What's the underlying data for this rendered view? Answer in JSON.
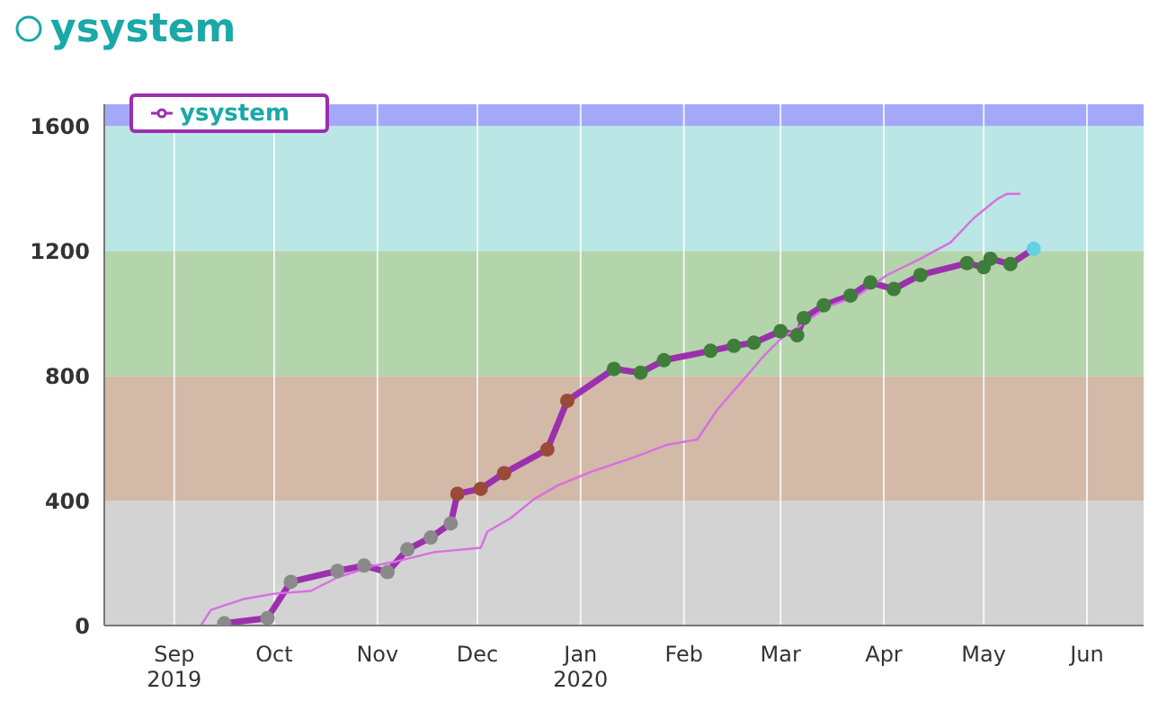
{
  "chart_data": {
    "type": "line",
    "title": "ysystem",
    "x": [
      "2019-09-16",
      "2019-09-29",
      "2019-10-06",
      "2019-10-20",
      "2019-10-28",
      "2019-11-04",
      "2019-11-10",
      "2019-11-17",
      "2019-11-23",
      "2019-11-25",
      "2019-12-02",
      "2019-12-09",
      "2019-12-22",
      "2019-12-28",
      "2020-01-11",
      "2020-01-19",
      "2020-01-26",
      "2020-02-09",
      "2020-02-16",
      "2020-02-22",
      "2020-03-01",
      "2020-03-06",
      "2020-03-08",
      "2020-03-14",
      "2020-03-22",
      "2020-03-28",
      "2020-04-04",
      "2020-04-12",
      "2020-04-26",
      "2020-05-01",
      "2020-05-03",
      "2020-05-09",
      "2020-05-16"
    ],
    "series": [
      {
        "name": "ysystem",
        "color": "#9b2fae",
        "marker": "circle",
        "values": [
          7,
          24,
          140,
          175,
          192,
          171,
          244,
          282,
          327,
          422,
          438,
          488,
          564,
          720,
          822,
          810,
          850,
          880,
          896,
          906,
          943,
          930,
          985,
          1026,
          1057,
          1099,
          1078,
          1123,
          1161,
          1148,
          1175,
          1158,
          1207
        ],
        "colors": [
          "#8a8a8a",
          "#8a8a8a",
          "#8a8a8a",
          "#8a8a8a",
          "#8a8a8a",
          "#8a8a8a",
          "#8a8a8a",
          "#8a8a8a",
          "#8a8a8a",
          "#9a4a38",
          "#9a4a38",
          "#9a4a38",
          "#9a4a38",
          "#9a4a38",
          "#3f7d3a",
          "#3f7d3a",
          "#3f7d3a",
          "#3f7d3a",
          "#3f7d3a",
          "#3f7d3a",
          "#3f7d3a",
          "#3f7d3a",
          "#3f7d3a",
          "#3f7d3a",
          "#3f7d3a",
          "#3f7d3a",
          "#3f7d3a",
          "#3f7d3a",
          "#3f7d3a",
          "#3f7d3a",
          "#3f7d3a",
          "#3f7d3a",
          "#5fd3e0"
        ]
      },
      {
        "color": "#d86ee4",
        "marker": "none",
        "x": [
          "2019-09-09",
          "2019-09-12",
          "2019-09-22",
          "2019-10-01",
          "2019-10-12",
          "2019-10-20",
          "2019-10-31",
          "2019-11-07",
          "2019-11-18",
          "2019-12-02",
          "2019-12-04",
          "2019-12-11",
          "2019-12-18",
          "2019-12-25",
          "2020-01-04",
          "2020-01-16",
          "2020-01-27",
          "2020-02-05",
          "2020-02-11",
          "2020-02-18",
          "2020-02-25",
          "2020-03-01",
          "2020-03-08",
          "2020-03-15",
          "2020-03-24",
          "2020-04-02",
          "2020-04-12",
          "2020-04-21",
          "2020-04-28",
          "2020-05-05",
          "2020-05-08",
          "2020-05-12"
        ],
        "values": [
          0,
          50,
          85,
          102,
          111,
          154,
          192,
          206,
          235,
          249,
          301,
          344,
          405,
          448,
          492,
          535,
          579,
          596,
          691,
          777,
          864,
          917,
          969,
          1021,
          1055,
          1123,
          1175,
          1227,
          1305,
          1366,
          1383,
          1383
        ]
      }
    ],
    "xlim": [
      "2019-08-11",
      "2020-06-18"
    ],
    "xticks": [
      {
        "value": "2019-09-01",
        "label": "Sep 2019"
      },
      {
        "value": "2019-10-01",
        "label": "Oct"
      },
      {
        "value": "2019-11-01",
        "label": "Nov"
      },
      {
        "value": "2019-12-01",
        "label": "Dec"
      },
      {
        "value": "2020-01-01",
        "label": "Jan 2020"
      },
      {
        "value": "2020-02-01",
        "label": "Feb"
      },
      {
        "value": "2020-03-01",
        "label": "Mar"
      },
      {
        "value": "2020-04-01",
        "label": "Apr"
      },
      {
        "value": "2020-05-01",
        "label": "May"
      },
      {
        "value": "2020-06-01",
        "label": "Jun"
      }
    ],
    "ylim": [
      0,
      1670
    ],
    "yticks": [
      0,
      400,
      800,
      1200,
      1600
    ],
    "bands": [
      {
        "axis": "y",
        "from": 0,
        "to": 400,
        "color": "#d3d3d3"
      },
      {
        "axis": "y",
        "from": 400,
        "to": 800,
        "color": "#d3b9a7"
      },
      {
        "axis": "y",
        "from": 800,
        "to": 1200,
        "color": "#b4d4ab"
      },
      {
        "axis": "y",
        "from": 1200,
        "to": 1600,
        "color": "#bae6e5"
      },
      {
        "axis": "y",
        "from": 1600,
        "to": 1670,
        "color": "#a3a9f8"
      }
    ],
    "grid": "x",
    "legend": "top left",
    "line_style": "solid"
  }
}
